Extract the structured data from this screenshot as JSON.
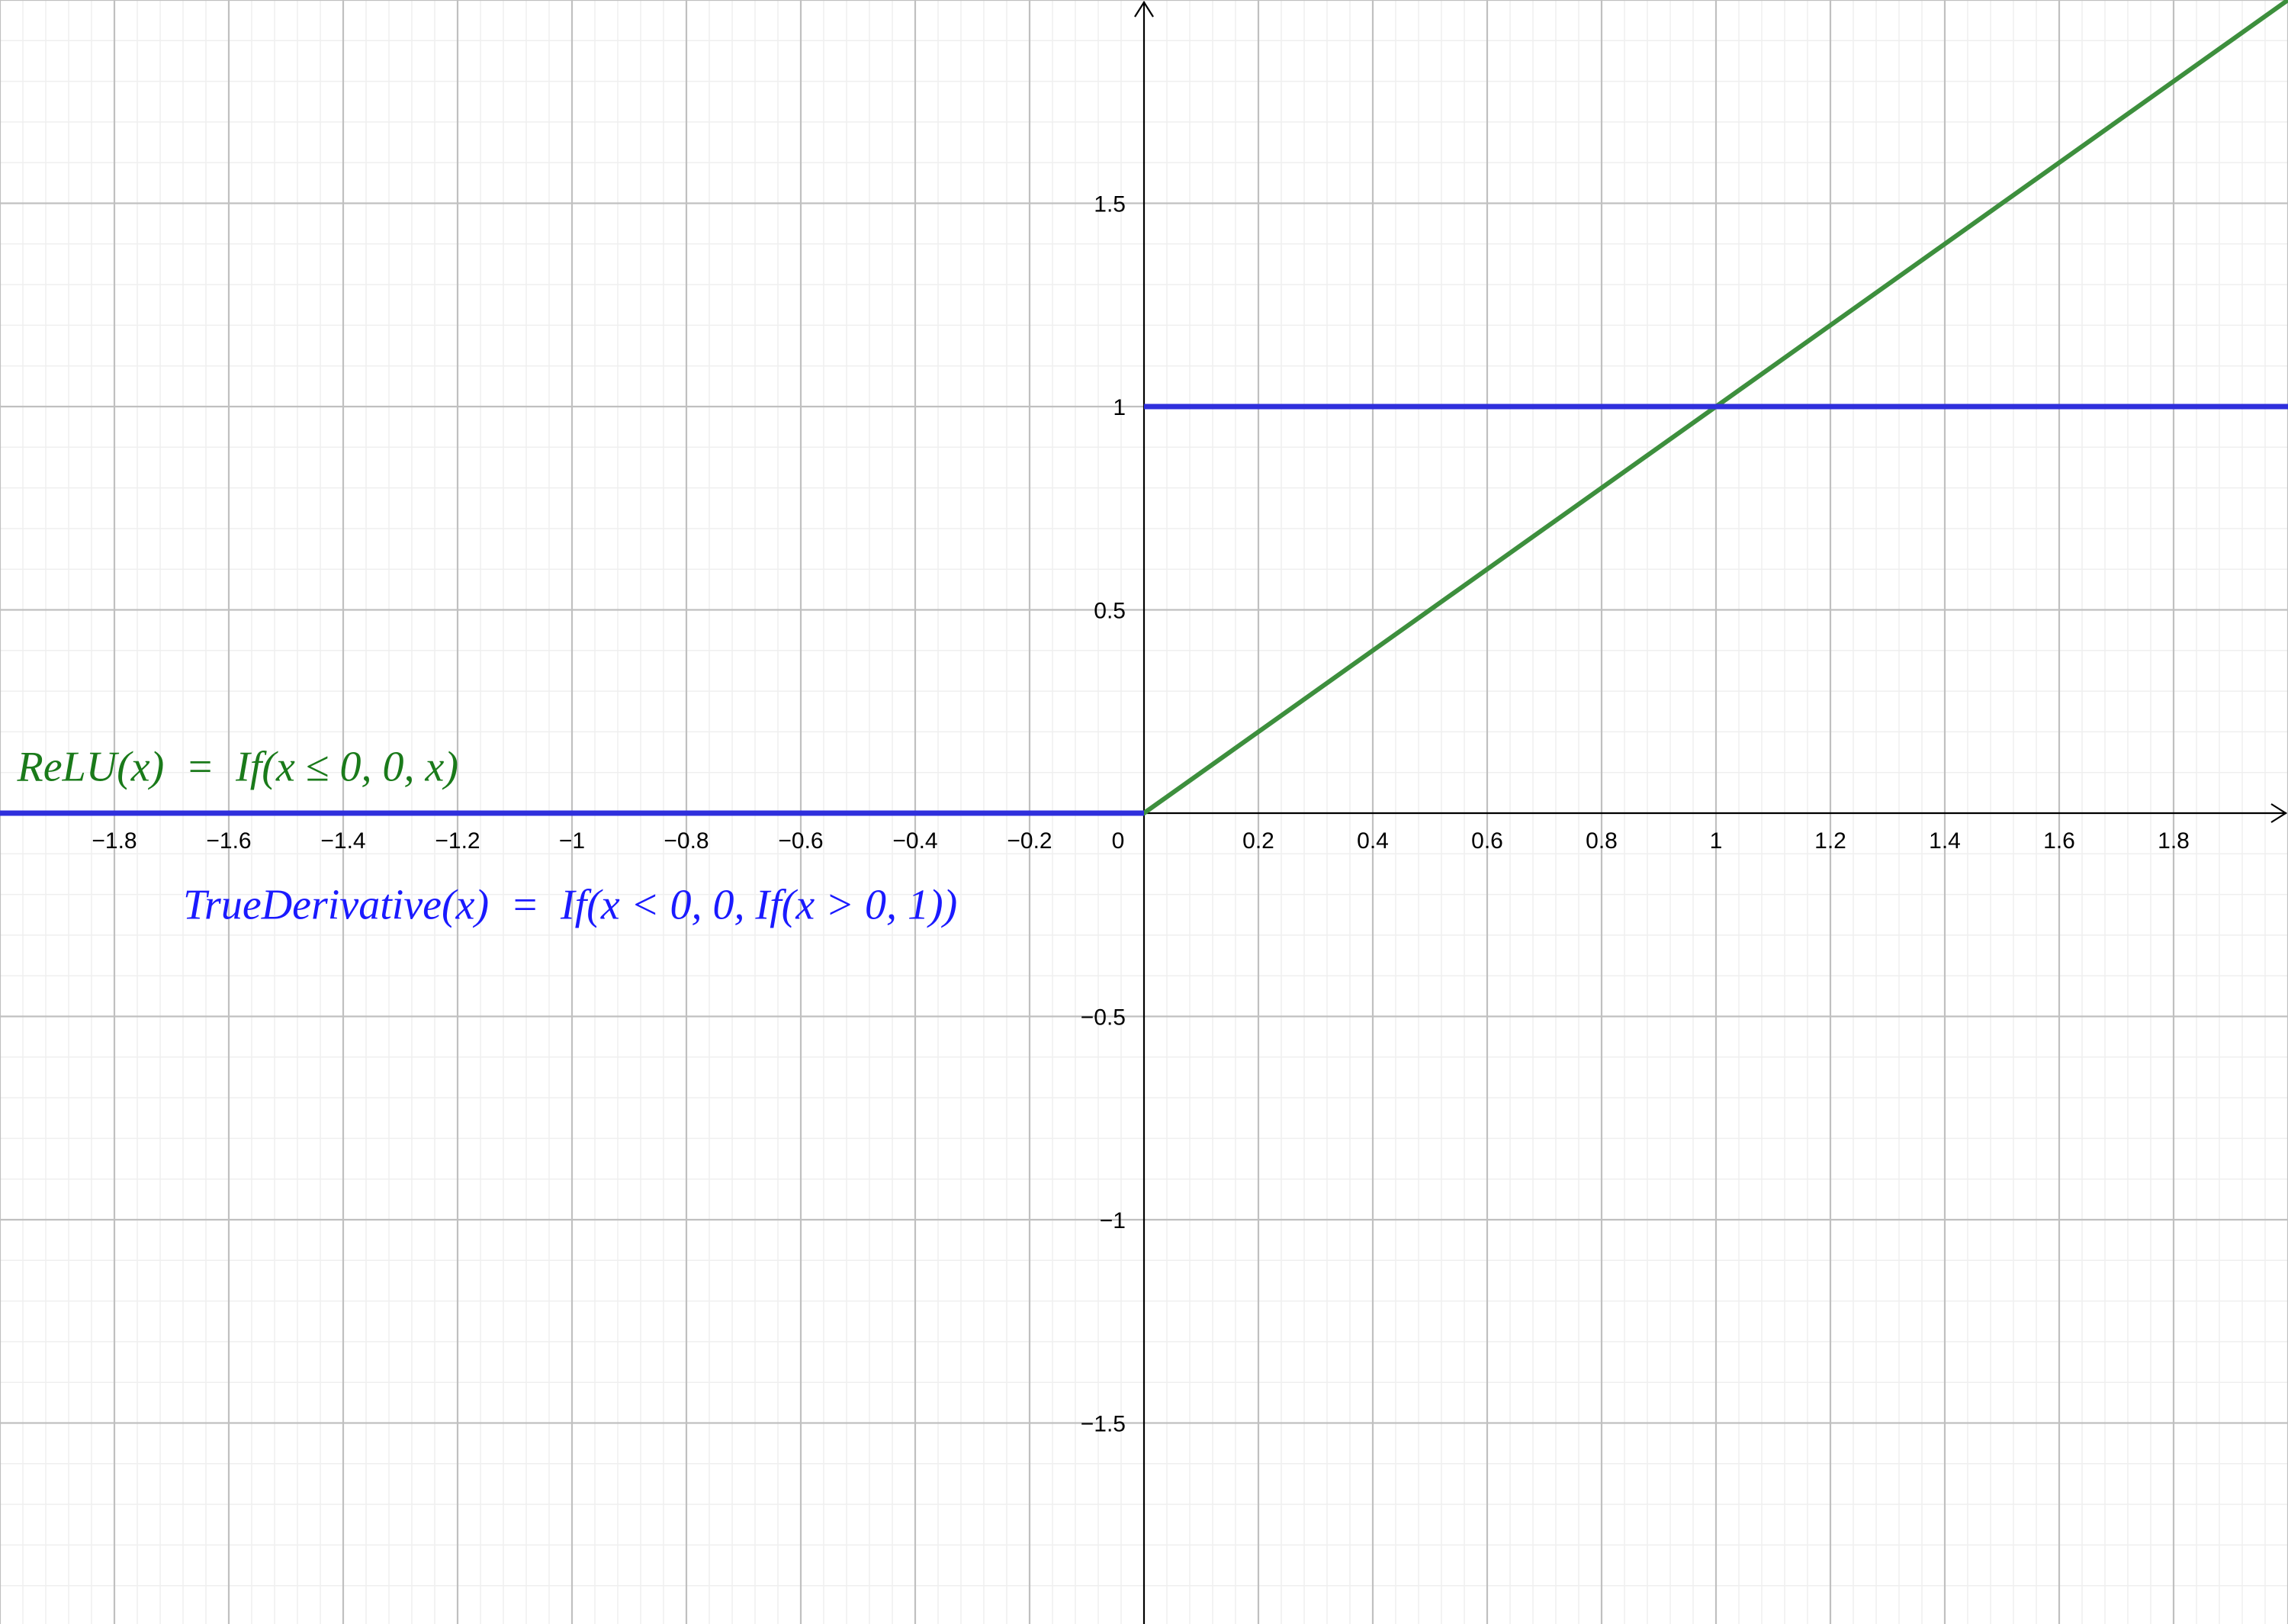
{
  "chart_data": {
    "type": "line",
    "title": "",
    "xlabel": "",
    "ylabel": "",
    "xlim": [
      -2.0,
      2.0
    ],
    "ylim": [
      -2.0,
      2.0
    ],
    "grid": true,
    "x_major_step": 0.2,
    "y_major_step": 0.5,
    "x_ticks": [
      -1.8,
      -1.6,
      -1.4,
      -1.2,
      -1,
      -0.8,
      -0.6,
      -0.4,
      -0.2,
      0,
      0.2,
      0.4,
      0.6,
      0.8,
      1,
      1.2,
      1.4,
      1.6,
      1.8
    ],
    "x_tick_labels": [
      "−1.8",
      "−1.6",
      "−1.4",
      "−1.2",
      "−1",
      "−0.8",
      "−0.6",
      "−0.4",
      "−0.2",
      "0",
      "0.2",
      "0.4",
      "0.6",
      "0.8",
      "1",
      "1.2",
      "1.4",
      "1.6",
      "1.8"
    ],
    "y_ticks": [
      1.5,
      1,
      0.5,
      -0.5,
      -1,
      -1.5
    ],
    "y_tick_labels": [
      "1.5",
      "1",
      "0.5",
      "−0.5",
      "−1",
      "−1.5"
    ],
    "series": [
      {
        "name": "ReLU(x) = If(x ≤ 0, 0, x)",
        "color": "#3d8f3d",
        "points": [
          [
            -2.0,
            0
          ],
          [
            0,
            0
          ],
          [
            2.0,
            2.0
          ]
        ]
      },
      {
        "name": "TrueDerivative(x) = If(x < 0, 0, If(x > 0, 1))",
        "color": "#2f2fdc",
        "points": [
          [
            -2.0,
            0
          ],
          [
            0,
            0
          ]
        ],
        "segments": [
          [
            [
              -2.0,
              0
            ],
            [
              0,
              0
            ]
          ],
          [
            [
              0,
              1
            ],
            [
              2.0,
              1
            ]
          ]
        ]
      }
    ],
    "annotations": [
      {
        "text": "ReLU(x)  =  If(x ≤ 0, 0, x)",
        "color": "#1a7a1a",
        "x": -1.97,
        "y": 0.08
      },
      {
        "text": "TrueDerivative(x)  =  If(x < 0, 0, If(x > 0, 1))",
        "color": "#1a1aff",
        "x": -1.68,
        "y": -0.26
      }
    ]
  }
}
